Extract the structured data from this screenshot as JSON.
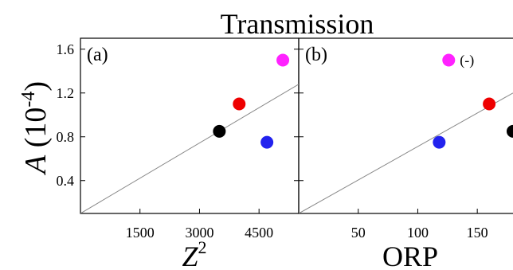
{
  "title": "Transmission",
  "y_axis": {
    "symbol": "A",
    "unit_prefix": " (10",
    "exponent": "-4",
    "unit_suffix": ")"
  },
  "chart_data": [
    {
      "type": "scatter",
      "panel_label": "(a)",
      "xlabel_base": "Z",
      "xlabel_sup": "2",
      "xlim": [
        0,
        5500
      ],
      "ylim": [
        0.1,
        1.7
      ],
      "xticks": [
        1500,
        3000,
        4500
      ],
      "yticks": [
        0.4,
        0.8,
        1.2,
        1.6
      ],
      "grid": false,
      "points": [
        {
          "x": 3500,
          "y": 0.85,
          "color": "#000000"
        },
        {
          "x": 4000,
          "y": 1.1,
          "color": "#ee0000"
        },
        {
          "x": 4700,
          "y": 0.75,
          "color": "#2222ee"
        },
        {
          "x": 5100,
          "y": 1.5,
          "color": "#ff22ff"
        }
      ],
      "fit_line": {
        "x": [
          0,
          5500
        ],
        "y": [
          0.1,
          1.28
        ],
        "color": "#888888"
      }
    },
    {
      "type": "scatter",
      "panel_label": "(b)",
      "xlabel": "ORP",
      "xlim": [
        0,
        180
      ],
      "ylim": [
        0.1,
        1.7
      ],
      "xticks": [
        50,
        100,
        150
      ],
      "yticks": [
        0.4,
        0.8,
        1.2,
        1.6
      ],
      "grid": false,
      "points": [
        {
          "x": 118,
          "y": 0.75,
          "color": "#2222ee"
        },
        {
          "x": 126,
          "y": 1.5,
          "color": "#ff22ff",
          "label": "(-)"
        },
        {
          "x": 160,
          "y": 1.1,
          "color": "#ee0000"
        },
        {
          "x": 180,
          "y": 0.85,
          "color": "#000000"
        }
      ],
      "fit_line": {
        "x": [
          0,
          180
        ],
        "y": [
          0.1,
          1.2
        ],
        "color": "#888888"
      }
    }
  ]
}
